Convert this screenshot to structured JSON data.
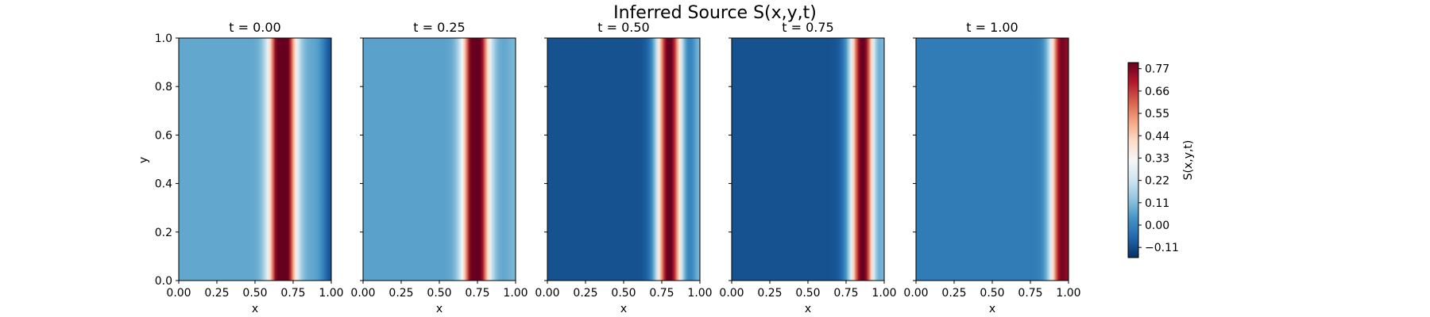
{
  "chart_data": {
    "type": "heatmap",
    "title": "Inferred Source S(x,y,t)",
    "xlabel": "x",
    "ylabel": "y",
    "xlim": [
      0,
      1
    ],
    "ylim": [
      0,
      1
    ],
    "xticks": [
      "0.00",
      "0.25",
      "0.50",
      "0.75",
      "1.00"
    ],
    "yticks": [
      "0.0",
      "0.2",
      "0.4",
      "0.6",
      "0.8",
      "1.0"
    ],
    "colormap": "RdBu_r",
    "colorbar": {
      "label": "S(x,y,t)",
      "range": [
        -0.16,
        0.8
      ],
      "ticks": [
        -0.11,
        0.0,
        0.11,
        0.22,
        0.33,
        0.44,
        0.55,
        0.66,
        0.77
      ],
      "tick_labels": [
        "−0.11",
        "0.00",
        "0.11",
        "0.22",
        "0.33",
        "0.44",
        "0.55",
        "0.66",
        "0.77"
      ]
    },
    "panels": [
      {
        "title": "t = 0.00",
        "t": 0.0,
        "peak_x": 0.68,
        "width": 0.08,
        "amplitude": 0.95,
        "background": 0.07,
        "right_edge": -0.1
      },
      {
        "title": "t = 0.25",
        "t": 0.25,
        "peak_x": 0.74,
        "width": 0.08,
        "amplitude": 0.9,
        "background": 0.06,
        "right_edge": 0.1
      },
      {
        "title": "t = 0.50",
        "t": 0.5,
        "peak_x": 0.8,
        "width": 0.08,
        "amplitude": 0.93,
        "background": -0.1,
        "right_edge": 0.1
      },
      {
        "title": "t = 0.75",
        "t": 0.75,
        "peak_x": 0.86,
        "width": 0.08,
        "amplitude": 0.93,
        "background": -0.1,
        "right_edge": 0.1
      },
      {
        "title": "t = 1.00",
        "t": 1.0,
        "peak_x": 0.97,
        "width": 0.08,
        "amplitude": 0.88,
        "background": -0.02,
        "right_edge": 0.75
      }
    ]
  }
}
